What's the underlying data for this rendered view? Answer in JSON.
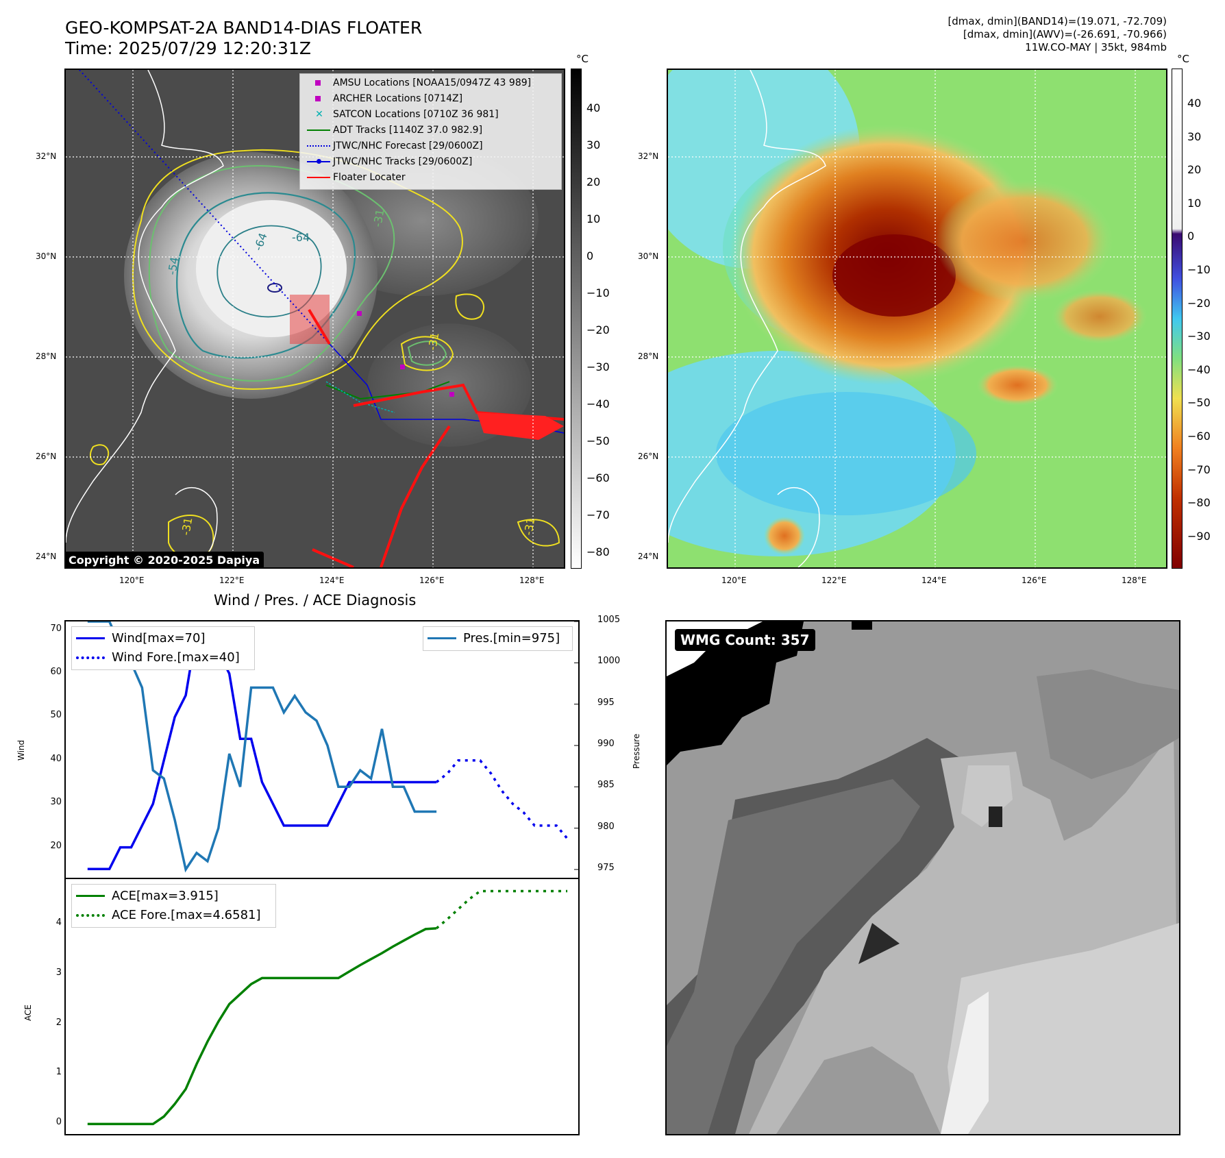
{
  "header": {
    "title_line1": "GEO-KOMPSAT-2A BAND14-DIAS FLOATER",
    "title_line2": "Time: 2025/07/29 12:20:31Z",
    "right_line1": "[dmax, dmin](BAND14)=(19.071, -72.709)",
    "right_line2": "[dmax, dmin](AWV)=(-26.691, -70.966)",
    "right_line3": "11W.CO-MAY | 35kt, 984mb"
  },
  "map": {
    "lat_labels": [
      "32°N",
      "30°N",
      "28°N",
      "26°N",
      "24°N"
    ],
    "lon_labels": [
      "120°E",
      "122°E",
      "124°E",
      "126°E",
      "128°E"
    ],
    "copyright": "Copyright © 2020-2025 Dapiya",
    "contour_labels": [
      "-54",
      "-64",
      "-64",
      "-31",
      "-31",
      "-31",
      "-31"
    ],
    "legend": [
      {
        "label": "AMSU Locations [NOAA15/0947Z 43 989]",
        "color": "#c000c0",
        "sym": "square"
      },
      {
        "label": "ARCHER Locations [0714Z]",
        "color": "#c000c0",
        "sym": "square"
      },
      {
        "label": "SATCON Locations [0710Z 36 981]",
        "color": "#00b0b0",
        "sym": "x"
      },
      {
        "label": "ADT Tracks [1140Z 37.0 982.9]",
        "color": "#008000",
        "sym": "line"
      },
      {
        "label": "JTWC/NHC Forecast [29/0600Z]",
        "color": "#0000dd",
        "sym": "dotted"
      },
      {
        "label": "JTWC/NHC Tracks [29/0600Z]",
        "color": "#0000dd",
        "sym": "linedot"
      },
      {
        "label": "Floater Locater",
        "color": "#ff0000",
        "sym": "line"
      }
    ]
  },
  "colorbar_gray": {
    "unit": "°C",
    "ticks": [
      "40",
      "30",
      "20",
      "10",
      "0",
      "−10",
      "−20",
      "−30",
      "−40",
      "−50",
      "−60",
      "−70",
      "−80"
    ]
  },
  "colorbar_color": {
    "unit": "°C",
    "ticks": [
      "40",
      "30",
      "20",
      "10",
      "0",
      "−10",
      "−20",
      "−30",
      "−40",
      "−50",
      "−60",
      "−70",
      "−80",
      "−90"
    ]
  },
  "wmg": {
    "label": "WMG Count: 357"
  },
  "chart_data": [
    {
      "type": "line",
      "title": "Wind / Pres. / ACE Diagnosis",
      "ylabel": "Wind",
      "ylabel_right": "Pressure",
      "ylim": [
        13,
        72
      ],
      "yticks": [
        "20",
        "30",
        "40",
        "50",
        "60",
        "70"
      ],
      "y2lim": [
        974,
        1005
      ],
      "y2ticks": [
        "975",
        "980",
        "985",
        "990",
        "995",
        "1000",
        "1005"
      ],
      "series": [
        {
          "name": "Wind[max=70]",
          "color": "#0000ee",
          "style": "solid",
          "x": [
            0,
            1,
            2,
            3,
            4,
            5,
            6,
            7,
            8,
            9,
            10,
            11,
            12,
            13,
            14,
            15,
            16,
            17,
            18,
            19,
            20,
            21,
            22,
            23,
            24,
            25,
            26,
            27,
            28,
            29,
            30,
            31,
            32
          ],
          "values": [
            15,
            15,
            15,
            20,
            20,
            25,
            30,
            40,
            50,
            55,
            70,
            65,
            65,
            60,
            45,
            45,
            35,
            30,
            25,
            25,
            25,
            25,
            25,
            30,
            35,
            35,
            35,
            35,
            35,
            35,
            35,
            35,
            35
          ]
        },
        {
          "name": "Wind Fore.[max=40]",
          "color": "#0000ee",
          "style": "dotted",
          "x": [
            32,
            33,
            34,
            35,
            36,
            37,
            38,
            39,
            40,
            41,
            42,
            43,
            44
          ],
          "values": [
            35,
            37,
            40,
            40,
            40,
            37,
            33,
            30,
            28,
            25,
            25,
            25,
            22
          ]
        },
        {
          "name": "Pres.[min=975]",
          "color": "#1f77b4",
          "style": "solid",
          "axis": "right",
          "x": [
            0,
            1,
            2,
            3,
            4,
            5,
            6,
            7,
            8,
            9,
            10,
            11,
            12,
            13,
            14,
            15,
            16,
            17,
            18,
            19,
            20,
            21,
            22,
            23,
            24,
            25,
            26,
            27,
            28,
            29,
            30,
            31,
            32
          ],
          "values": [
            1005,
            1005,
            1005,
            1002,
            1000,
            997,
            987,
            986,
            981,
            975,
            977,
            976,
            980,
            989,
            985,
            997,
            997,
            997,
            994,
            996,
            994,
            993,
            990,
            985,
            985,
            987,
            986,
            992,
            985,
            985,
            982,
            982,
            982
          ]
        }
      ]
    },
    {
      "type": "line",
      "ylabel": "ACE",
      "ylim": [
        -0.2,
        4.9
      ],
      "yticks": [
        "0",
        "1",
        "2",
        "3",
        "4"
      ],
      "series": [
        {
          "name": "ACE[max=3.915]",
          "color": "#008000",
          "style": "solid",
          "x": [
            0,
            1,
            2,
            3,
            4,
            5,
            6,
            7,
            8,
            9,
            10,
            11,
            12,
            13,
            14,
            15,
            16,
            17,
            18,
            19,
            20,
            21,
            22,
            23,
            24,
            25,
            26,
            27,
            28,
            29,
            30,
            31,
            32
          ],
          "values": [
            0,
            0,
            0,
            0,
            0,
            0,
            0,
            0.15,
            0.4,
            0.7,
            1.2,
            1.65,
            2.05,
            2.4,
            2.6,
            2.8,
            2.92,
            2.92,
            2.92,
            2.92,
            2.92,
            2.92,
            2.92,
            2.92,
            3.05,
            3.18,
            3.3,
            3.42,
            3.55,
            3.67,
            3.79,
            3.9,
            3.915
          ]
        },
        {
          "name": "ACE Fore.[max=4.6581]",
          "color": "#008000",
          "style": "dotted",
          "x": [
            32,
            33,
            34,
            35,
            36,
            37,
            38,
            39,
            40,
            41,
            42,
            43,
            44
          ],
          "values": [
            3.915,
            4.1,
            4.3,
            4.5,
            4.66,
            4.66,
            4.66,
            4.66,
            4.66,
            4.66,
            4.66,
            4.66,
            4.66
          ]
        }
      ]
    }
  ]
}
